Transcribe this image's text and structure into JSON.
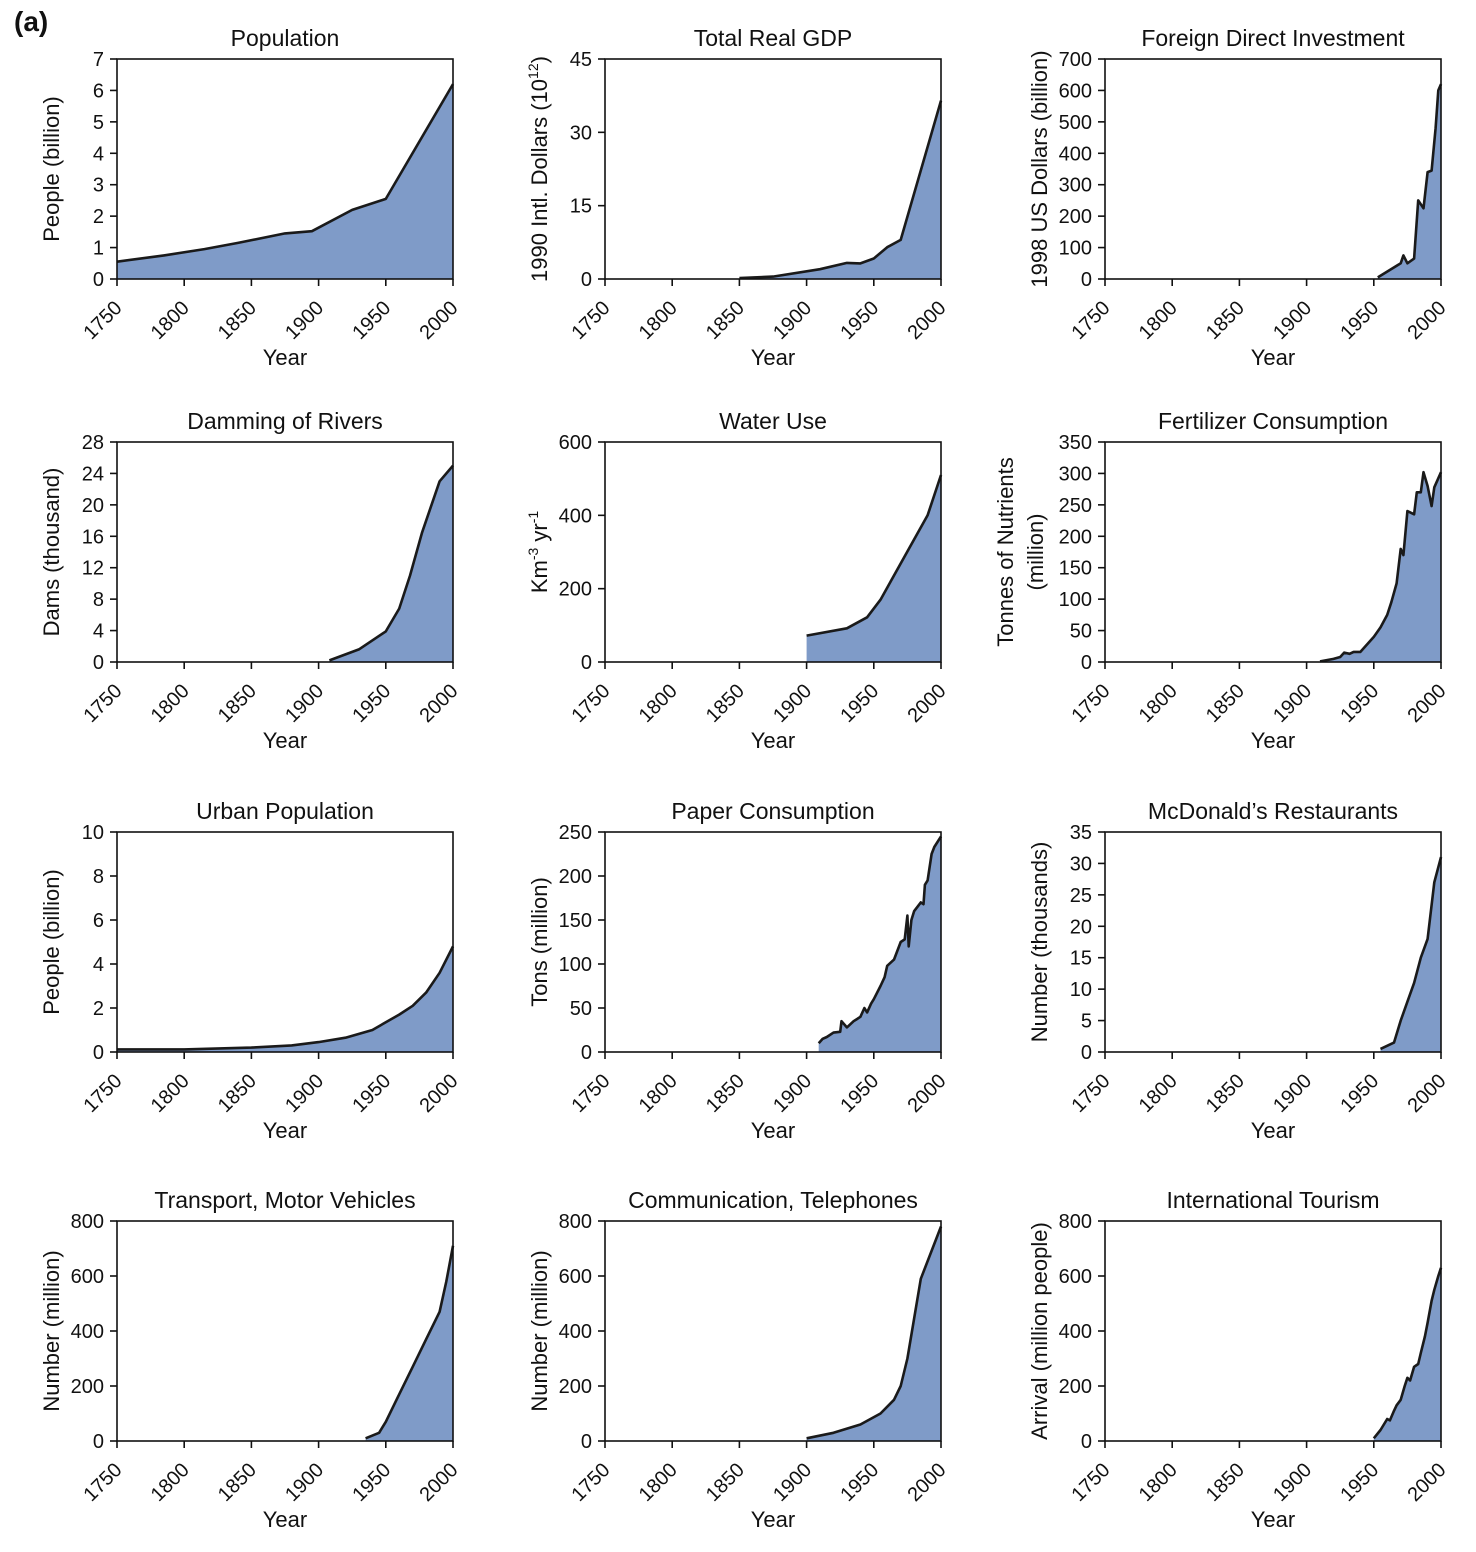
{
  "panel_label": "(a)",
  "colors": {
    "fill": "#7f9bc8",
    "line": "#1a1a1a",
    "axis": "#111111"
  },
  "chart_data": [
    {
      "type": "area",
      "title": "Population",
      "xlabel": "Year",
      "ylabel": "People (billion)",
      "xlim": [
        1750,
        2000
      ],
      "xticks": [
        1750,
        1800,
        1850,
        1900,
        1950,
        2000
      ],
      "ylim": [
        0,
        7
      ],
      "yticks": [
        0,
        1,
        2,
        3,
        4,
        5,
        6,
        7
      ],
      "series": [
        {
          "name": "Population",
          "x": [
            1750,
            1785,
            1815,
            1840,
            1875,
            1895,
            1925,
            1950,
            2000
          ],
          "y": [
            0.55,
            0.75,
            0.95,
            1.15,
            1.45,
            1.52,
            2.2,
            2.55,
            6.2
          ]
        }
      ]
    },
    {
      "type": "area",
      "title": "Total Real GDP",
      "xlabel": "Year",
      "ylabel": "1990 Intl. Dollars (10",
      "ylabel_sup": "12",
      "ylabel_end": ")",
      "xlim": [
        1750,
        2000
      ],
      "xticks": [
        1750,
        1800,
        1850,
        1900,
        1950,
        2000
      ],
      "ylim": [
        0,
        45
      ],
      "yticks": [
        0,
        15,
        30,
        45
      ],
      "series": [
        {
          "name": "GDP",
          "x": [
            1850,
            1875,
            1910,
            1930,
            1940,
            1950,
            1960,
            1970,
            2000
          ],
          "y": [
            0.2,
            0.5,
            2.0,
            3.3,
            3.2,
            4.2,
            6.5,
            8.0,
            36.5
          ]
        }
      ]
    },
    {
      "type": "area",
      "title": "Foreign Direct Investment",
      "xlabel": "Year",
      "ylabel": "1998 US Dollars (billion)",
      "xlim": [
        1750,
        2000
      ],
      "xticks": [
        1750,
        1800,
        1850,
        1900,
        1950,
        2000
      ],
      "ylim": [
        0,
        700
      ],
      "yticks": [
        0,
        100,
        200,
        300,
        400,
        500,
        600,
        700
      ],
      "series": [
        {
          "name": "FDI",
          "x": [
            1953,
            1970,
            1972,
            1975,
            1980,
            1983,
            1987,
            1990,
            1993,
            1996,
            1998,
            2000
          ],
          "y": [
            5,
            50,
            75,
            50,
            65,
            250,
            225,
            340,
            345,
            480,
            600,
            620
          ]
        }
      ]
    },
    {
      "type": "area",
      "title": "Damming of Rivers",
      "xlabel": "Year",
      "ylabel": "Dams (thousand)",
      "xlim": [
        1750,
        2000
      ],
      "xticks": [
        1750,
        1800,
        1850,
        1900,
        1950,
        2000
      ],
      "ylim": [
        0,
        28
      ],
      "yticks": [
        0,
        4,
        8,
        12,
        16,
        20,
        24,
        28
      ],
      "series": [
        {
          "name": "Dams",
          "x": [
            1908,
            1930,
            1950,
            1960,
            1968,
            1977,
            1990,
            2000
          ],
          "y": [
            0.2,
            1.6,
            3.9,
            6.8,
            11.0,
            16.5,
            23.0,
            25.0
          ]
        }
      ]
    },
    {
      "type": "area",
      "title": "Water Use",
      "xlabel": "Year",
      "ylabel": "Km",
      "ylabel_sup": "-3",
      "ylabel_end": " yr",
      "ylabel_sup2": "-1",
      "xlim": [
        1750,
        2000
      ],
      "xticks": [
        1750,
        1800,
        1850,
        1900,
        1950,
        2000
      ],
      "ylim": [
        0,
        600
      ],
      "yticks": [
        0,
        200,
        400,
        600
      ],
      "series": [
        {
          "name": "Water use",
          "x": [
            1900,
            1930,
            1945,
            1955,
            1990,
            2000
          ],
          "y": [
            72,
            92,
            122,
            170,
            400,
            510
          ]
        }
      ]
    },
    {
      "type": "area",
      "title": "Fertilizer Consumption",
      "xlabel": "Year",
      "ylabel": "Tonnes of Nutrients",
      "ylabel2": "(million)",
      "xlim": [
        1750,
        2000
      ],
      "xticks": [
        1750,
        1800,
        1850,
        1900,
        1950,
        2000
      ],
      "ylim": [
        0,
        350
      ],
      "yticks": [
        0,
        50,
        100,
        150,
        200,
        250,
        300,
        350
      ],
      "series": [
        {
          "name": "Fertilizer",
          "x": [
            1910,
            1920,
            1925,
            1928,
            1932,
            1935,
            1940,
            1950,
            1955,
            1960,
            1963,
            1967,
            1970,
            1972,
            1975,
            1980,
            1982,
            1985,
            1987,
            1990,
            1993,
            1995,
            2000
          ],
          "y": [
            1,
            5,
            8,
            15,
            13,
            16,
            16,
            40,
            55,
            75,
            95,
            125,
            180,
            170,
            240,
            235,
            270,
            270,
            302,
            280,
            248,
            278,
            302
          ]
        }
      ]
    },
    {
      "type": "area",
      "title": "Urban Population",
      "xlabel": "Year",
      "ylabel": "People (billion)",
      "xlim": [
        1750,
        2000
      ],
      "xticks": [
        1750,
        1800,
        1850,
        1900,
        1950,
        2000
      ],
      "ylim": [
        0,
        10
      ],
      "yticks": [
        0,
        2,
        4,
        6,
        8,
        10
      ],
      "series": [
        {
          "name": "Urban",
          "x": [
            1750,
            1800,
            1850,
            1880,
            1900,
            1920,
            1940,
            1950,
            1960,
            1970,
            1980,
            1990,
            2000
          ],
          "y": [
            0.12,
            0.12,
            0.2,
            0.3,
            0.45,
            0.65,
            1.0,
            1.35,
            1.7,
            2.1,
            2.7,
            3.6,
            4.8
          ]
        }
      ]
    },
    {
      "type": "area",
      "title": "Paper Consumption",
      "xlabel": "Year",
      "ylabel": "Tons (million)",
      "xlim": [
        1750,
        2000
      ],
      "xticks": [
        1750,
        1800,
        1850,
        1900,
        1950,
        2000
      ],
      "ylim": [
        0,
        250
      ],
      "yticks": [
        0,
        50,
        100,
        150,
        200,
        250
      ],
      "series": [
        {
          "name": "Paper",
          "x": [
            1909,
            1912,
            1915,
            1920,
            1925,
            1926,
            1930,
            1935,
            1938,
            1940,
            1943,
            1945,
            1948,
            1950,
            1955,
            1958,
            1960,
            1965,
            1970,
            1973,
            1975,
            1976,
            1978,
            1980,
            1985,
            1987,
            1988,
            1990,
            1993,
            1995,
            2000
          ],
          "y": [
            10,
            15,
            17,
            22,
            23,
            35,
            28,
            35,
            38,
            40,
            50,
            45,
            55,
            60,
            75,
            85,
            98,
            105,
            125,
            128,
            155,
            120,
            150,
            160,
            170,
            168,
            190,
            195,
            225,
            233,
            245
          ]
        }
      ]
    },
    {
      "type": "area",
      "title": "McDonald’s Restaurants",
      "xlabel": "Year",
      "ylabel": "Number (thousands)",
      "xlim": [
        1750,
        2000
      ],
      "xticks": [
        1750,
        1800,
        1850,
        1900,
        1950,
        2000
      ],
      "ylim": [
        0,
        35
      ],
      "yticks": [
        0,
        5,
        10,
        15,
        20,
        25,
        30,
        35
      ],
      "series": [
        {
          "name": "McDonald's",
          "x": [
            1955,
            1965,
            1970,
            1975,
            1980,
            1985,
            1990,
            1995,
            2000
          ],
          "y": [
            0.5,
            1.5,
            5.0,
            8.0,
            11.0,
            15.0,
            18.0,
            27.0,
            31.0
          ]
        }
      ]
    },
    {
      "type": "area",
      "title": "Transport, Motor Vehicles",
      "xlabel": "Year",
      "ylabel": "Number (million)",
      "xlim": [
        1750,
        2000
      ],
      "xticks": [
        1750,
        1800,
        1850,
        1900,
        1950,
        2000
      ],
      "ylim": [
        0,
        800
      ],
      "yticks": [
        0,
        200,
        400,
        600,
        800
      ],
      "series": [
        {
          "name": "Vehicles",
          "x": [
            1935,
            1945,
            1950,
            1960,
            1970,
            1980,
            1990,
            1995,
            2000
          ],
          "y": [
            10,
            30,
            70,
            170,
            270,
            370,
            470,
            580,
            710
          ]
        }
      ]
    },
    {
      "type": "area",
      "title": "Communication, Telephones",
      "xlabel": "Year",
      "ylabel": "Number (million)",
      "xlim": [
        1750,
        2000
      ],
      "xticks": [
        1750,
        1800,
        1850,
        1900,
        1950,
        2000
      ],
      "ylim": [
        0,
        800
      ],
      "yticks": [
        0,
        200,
        400,
        600,
        800
      ],
      "series": [
        {
          "name": "Telephones",
          "x": [
            1900,
            1920,
            1940,
            1955,
            1965,
            1970,
            1975,
            1985,
            2000
          ],
          "y": [
            10,
            30,
            60,
            100,
            150,
            200,
            300,
            590,
            780
          ]
        }
      ]
    },
    {
      "type": "area",
      "title": "International Tourism",
      "xlabel": "Year",
      "ylabel": "Arrival (million people)",
      "xlim": [
        1750,
        2000
      ],
      "xticks": [
        1750,
        1800,
        1850,
        1900,
        1950,
        2000
      ],
      "ylim": [
        0,
        800
      ],
      "yticks": [
        0,
        200,
        400,
        600,
        800
      ],
      "series": [
        {
          "name": "Tourism",
          "x": [
            1950,
            1955,
            1960,
            1962,
            1965,
            1967,
            1970,
            1973,
            1975,
            1977,
            1980,
            1983,
            1985,
            1988,
            1990,
            1993,
            1995,
            1998,
            2000
          ],
          "y": [
            10,
            40,
            80,
            75,
            110,
            130,
            150,
            200,
            230,
            220,
            270,
            280,
            320,
            380,
            430,
            510,
            550,
            600,
            630
          ]
        }
      ]
    }
  ]
}
